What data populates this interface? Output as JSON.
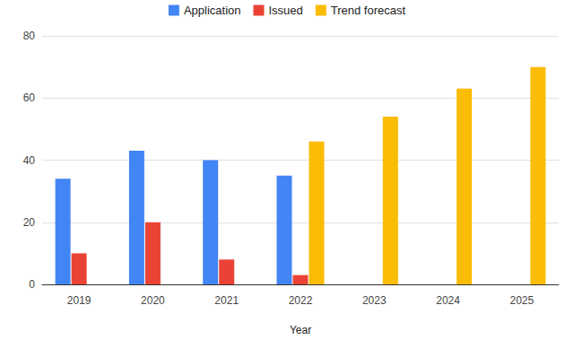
{
  "chart_data": {
    "type": "bar",
    "categories": [
      "2019",
      "2020",
      "2021",
      "2022",
      "2023",
      "2024",
      "2025"
    ],
    "series": [
      {
        "name": "Application",
        "color": "#4285f4",
        "values": [
          34,
          43,
          40,
          35,
          null,
          null,
          null
        ]
      },
      {
        "name": "Issued",
        "color": "#ea4335",
        "values": [
          10,
          20,
          8,
          3,
          null,
          null,
          null
        ]
      },
      {
        "name": "Trend forecast",
        "color": "#fbbc04",
        "values": [
          null,
          null,
          null,
          46,
          54,
          63,
          70
        ]
      }
    ],
    "x_label": "Year",
    "ylim": [
      0,
      80
    ],
    "yticks": [
      0,
      20,
      40,
      60,
      80
    ],
    "grid": true,
    "legend": "top"
  }
}
